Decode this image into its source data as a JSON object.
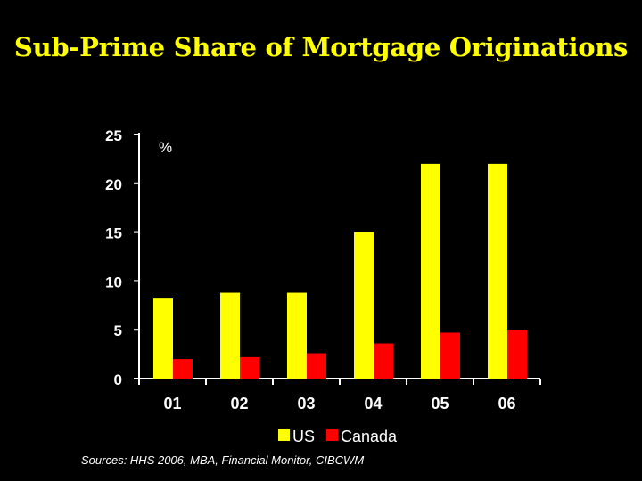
{
  "slide": {
    "title": "Sub-Prime Share of Mortgage Originations",
    "source": "Sources: HHS 2006, MBA, Financial Monitor, CIBCWM"
  },
  "chart_data": {
    "type": "bar",
    "title": "Sub-Prime Share of Mortgage Originations",
    "unit_label": "%",
    "categories": [
      "01",
      "02",
      "03",
      "04",
      "05",
      "06"
    ],
    "series": [
      {
        "name": "US",
        "color": "#ffff00",
        "values": [
          8.2,
          8.8,
          8.8,
          15.0,
          22.0,
          22.0
        ]
      },
      {
        "name": "Canada",
        "color": "#ff0000",
        "values": [
          2.0,
          2.2,
          2.6,
          3.6,
          4.7,
          5.0
        ]
      }
    ],
    "ylim": [
      0,
      25
    ],
    "yticks": [
      "0",
      "5",
      "10",
      "15",
      "20",
      "25"
    ],
    "grid": false,
    "legend_position": "bottom"
  }
}
